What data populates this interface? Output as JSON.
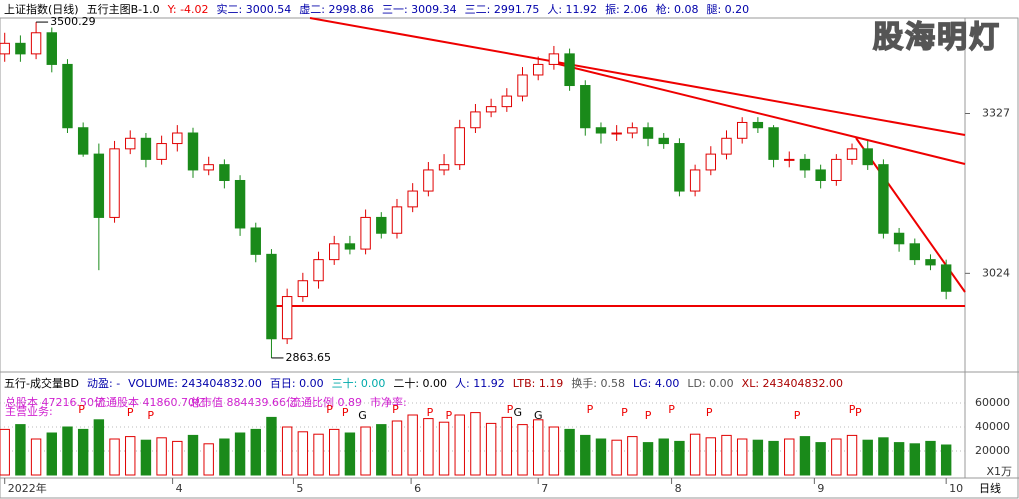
{
  "header": [
    {
      "text": "上证指数(日线)",
      "color": "#000"
    },
    {
      "text": "五行主图B-1.0",
      "color": "#000"
    },
    {
      "text": "Y: -4.02",
      "color": "#e00"
    },
    {
      "text": "实二: 3000.54",
      "color": "#00a"
    },
    {
      "text": "虚二: 2998.86",
      "color": "#00a"
    },
    {
      "text": "三一: 3009.34",
      "color": "#00a"
    },
    {
      "text": "三二: 2991.75",
      "color": "#00a"
    },
    {
      "text": "人: 11.92",
      "color": "#00a"
    },
    {
      "text": "振: 2.06",
      "color": "#00a"
    },
    {
      "text": "枪: 0.08",
      "color": "#00a"
    },
    {
      "text": "腿: 0.20",
      "color": "#00a"
    }
  ],
  "watermark": "股海明灯",
  "volume_header": [
    {
      "text": "五行-成交量BD",
      "color": "#000"
    },
    {
      "text": "动盈: -",
      "color": "#00a"
    },
    {
      "text": "VOLUME: 243404832.00",
      "color": "#00a"
    },
    {
      "text": "百日: 0.00",
      "color": "#00a"
    },
    {
      "text": "三十: 0.00",
      "color": "#0aa"
    },
    {
      "text": "二十: 0.00",
      "color": "#000"
    },
    {
      "text": "人: 11.92",
      "color": "#00a"
    },
    {
      "text": "LTB: 1.19",
      "color": "#a00"
    },
    {
      "text": "换手: 0.58",
      "color": "#555"
    },
    {
      "text": "LG: 4.00",
      "color": "#00a"
    },
    {
      "text": "LD: 0.00",
      "color": "#555"
    },
    {
      "text": "XL: 243404832.00",
      "color": "#a00"
    }
  ],
  "info": [
    "总股本 47216.50亿",
    "流通股本 41860.70亿",
    "总市值 884439.66亿",
    "流通比例 0.89",
    "市净率:",
    "主营业务:"
  ],
  "chart_data": [
    {
      "type": "candlestick",
      "open": [
        3440,
        3460,
        3440,
        3480,
        3420,
        3300,
        3250,
        3130,
        3260,
        3280,
        3240,
        3270,
        3290,
        3220,
        3230,
        3200,
        3110,
        3060,
        2900,
        2980,
        3010,
        3050,
        3080,
        3070,
        3130,
        3100,
        3150,
        3180,
        3220,
        3230,
        3300,
        3330,
        3340,
        3360,
        3400,
        3420,
        3440,
        3380,
        3300,
        3290,
        3290,
        3300,
        3280,
        3270,
        3180,
        3220,
        3250,
        3280,
        3310,
        3300,
        3240,
        3240,
        3220,
        3200,
        3240,
        3260,
        3230,
        3100,
        3080,
        3050,
        3040
      ],
      "high": [
        3480,
        3475,
        3500.29,
        3490,
        3430,
        3310,
        3270,
        3275,
        3295,
        3290,
        3285,
        3305,
        3300,
        3245,
        3240,
        3210,
        3120,
        3070,
        2995,
        3025,
        3065,
        3095,
        3095,
        3145,
        3140,
        3165,
        3195,
        3235,
        3250,
        3315,
        3345,
        3355,
        3375,
        3415,
        3435,
        3455,
        3450,
        3390,
        3310,
        3305,
        3310,
        3310,
        3290,
        3280,
        3230,
        3265,
        3295,
        3320,
        3320,
        3305,
        3255,
        3250,
        3230,
        3250,
        3270,
        3275,
        3240,
        3110,
        3090,
        3060,
        3050
      ],
      "low": [
        3425,
        3425,
        3430,
        3405,
        3290,
        3245,
        3030,
        3120,
        3250,
        3225,
        3230,
        3255,
        3205,
        3210,
        3185,
        3095,
        3045,
        2863.65,
        2890,
        2970,
        2995,
        3040,
        3060,
        3060,
        3090,
        3090,
        3140,
        3170,
        3210,
        3220,
        3290,
        3320,
        3330,
        3350,
        3390,
        3410,
        3370,
        3285,
        3270,
        3275,
        3280,
        3265,
        3260,
        3170,
        3170,
        3210,
        3240,
        3270,
        3290,
        3225,
        3225,
        3205,
        3185,
        3190,
        3230,
        3220,
        3090,
        3065,
        3040,
        3030,
        2975
      ],
      "close": [
        3460,
        3440,
        3480,
        3420,
        3300,
        3250,
        3130,
        3260,
        3280,
        3240,
        3270,
        3290,
        3220,
        3230,
        3200,
        3110,
        3060,
        2900,
        2980,
        3010,
        3050,
        3080,
        3070,
        3130,
        3100,
        3150,
        3180,
        3220,
        3230,
        3300,
        3330,
        3340,
        3360,
        3400,
        3420,
        3440,
        3380,
        3300,
        3290,
        3290,
        3300,
        3280,
        3270,
        3180,
        3220,
        3250,
        3280,
        3310,
        3300,
        3240,
        3240,
        3220,
        3200,
        3240,
        3260,
        3230,
        3100,
        3080,
        3050,
        3040,
        2990
      ],
      "up_color": "#e00000",
      "down_color": "#1a8a1a",
      "ylim": [
        2837,
        3508
      ],
      "yticks": [
        3024,
        3327
      ],
      "xlim": [
        -0.3,
        61.2
      ],
      "annotations": [
        {
          "index": 2,
          "value": 3500.29,
          "label": "3500.29"
        },
        {
          "index": 17,
          "value": 2863.65,
          "label": "2863.65"
        }
      ]
    },
    {
      "type": "bar",
      "values": [
        38000,
        42000,
        30000,
        35000,
        40000,
        38000,
        46000,
        30000,
        32000,
        29000,
        31000,
        28000,
        33000,
        26000,
        30000,
        35000,
        38000,
        48000,
        40000,
        36000,
        34000,
        38000,
        35000,
        40000,
        42000,
        45000,
        50000,
        47000,
        44000,
        50000,
        52000,
        43000,
        48000,
        42000,
        46000,
        40000,
        38000,
        33000,
        30000,
        29000,
        32000,
        27000,
        30000,
        28000,
        34000,
        31000,
        33000,
        30000,
        29000,
        28000,
        30000,
        32000,
        27000,
        30000,
        33000,
        29000,
        31000,
        27000,
        26000,
        28000,
        25000
      ],
      "ylim": [
        -2500,
        66667
      ],
      "yticks": [
        20000,
        40000,
        60000
      ],
      "unit_label": "X1万",
      "xlim": [
        -0.3,
        61.2
      ],
      "signals": [
        {
          "index": 4.9,
          "label": "P"
        },
        {
          "index": 8,
          "label": "P"
        },
        {
          "index": 9.3,
          "label": "P"
        },
        {
          "index": 20.7,
          "label": "P"
        },
        {
          "index": 21.7,
          "label": "P"
        },
        {
          "index": 22.8,
          "label": "G"
        },
        {
          "index": 24.9,
          "label": "P"
        },
        {
          "index": 27.1,
          "label": "P"
        },
        {
          "index": 28.3,
          "label": "P"
        },
        {
          "index": 32.2,
          "label": "P"
        },
        {
          "index": 32.7,
          "label": "G"
        },
        {
          "index": 34,
          "label": "G"
        },
        {
          "index": 37.3,
          "label": "P"
        },
        {
          "index": 39.5,
          "label": "P"
        },
        {
          "index": 41,
          "label": "P"
        },
        {
          "index": 42.5,
          "label": "P"
        },
        {
          "index": 44.9,
          "label": "P"
        },
        {
          "index": 50.5,
          "label": "P"
        },
        {
          "index": 54,
          "label": "P"
        },
        {
          "index": 54.4,
          "label": "P"
        }
      ],
      "xticks": [
        {
          "value": 0,
          "label": "2022年"
        },
        {
          "value": 10.7,
          "label": "4"
        },
        {
          "value": 18.4,
          "label": "5"
        },
        {
          "value": 25.9,
          "label": "6"
        },
        {
          "value": 34,
          "label": "7"
        },
        {
          "value": 42.5,
          "label": "8"
        },
        {
          "value": 51.6,
          "label": "9"
        },
        {
          "value": 60,
          "label": "10"
        }
      ],
      "period_label": "日线"
    }
  ]
}
